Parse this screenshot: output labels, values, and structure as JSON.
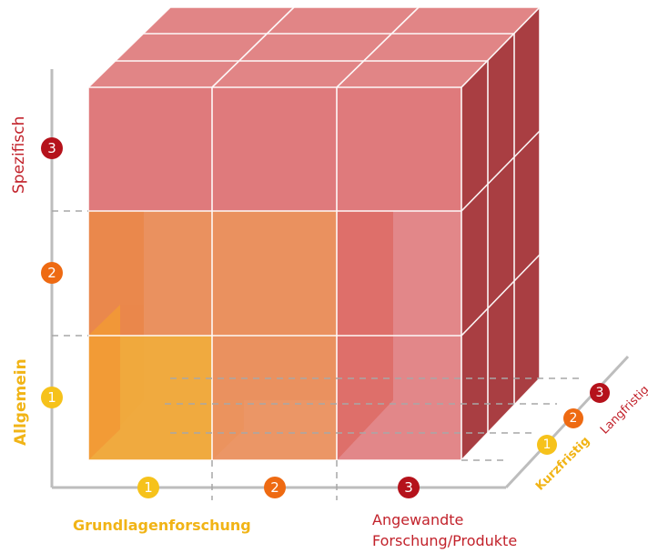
{
  "colors": {
    "level1": "#f6c21b",
    "level2": "#ee6a12",
    "level3": "#b5121b",
    "label1": "#f1b416",
    "label3": "#c2222b",
    "cube_front": "#df7a7c",
    "cube_top": "#df7e80",
    "cube_side": "#a93e42",
    "mid_block": "#f0a052",
    "mid_block_back": "#e45e32",
    "small_block": "#f9c51c",
    "small_block_back": "#fca811",
    "axis": "#bdbdbd",
    "dashes": "#a7a7a7"
  },
  "y_axis": {
    "labels": {
      "specific": "Spezifisch",
      "general": "Allgemein"
    },
    "badges": [
      "1",
      "2",
      "3"
    ]
  },
  "x_axis": {
    "labels": {
      "basic": "Grundlagenforschung",
      "applied_line1": "Angewandte",
      "applied_line2": "Forschung/Produkte"
    },
    "badges": [
      "1",
      "2",
      "3"
    ]
  },
  "z_axis": {
    "labels": {
      "short": "Kurzfristig",
      "long": "Langfristig"
    },
    "badges": [
      "1",
      "2",
      "3"
    ]
  }
}
